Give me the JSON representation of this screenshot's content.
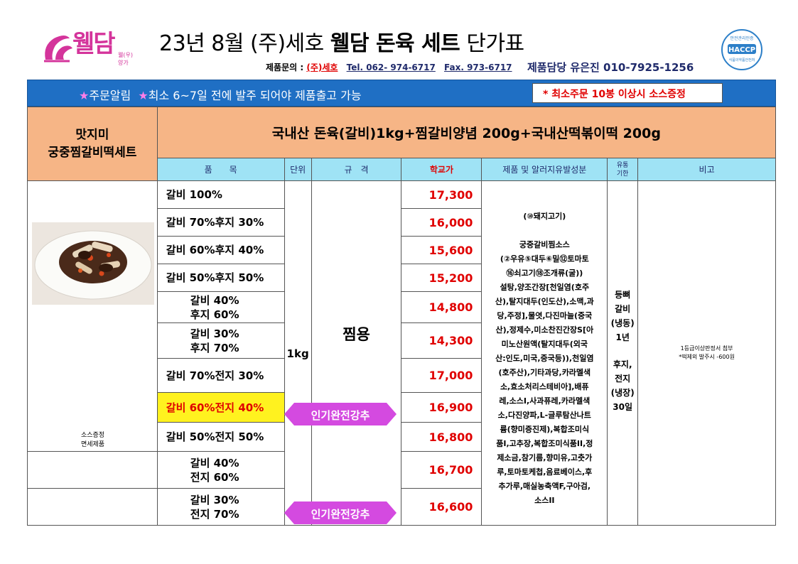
{
  "header": {
    "logo_text": "웰담",
    "logo_sub": "웰(우)양가",
    "title_prefix": "23년 8월 (주)세호",
    "title_brand": "웰담 돈육 세트",
    "title_suffix": "단가표",
    "contact_label": "제품문의 :",
    "contact_company": "(주)세호",
    "contact_tel": "Tel. 062- 974-6717",
    "contact_fax": "Fax. 973-6717",
    "manager": "제품담당 유은진 010-7925-1256",
    "haccp_top": "안전관리인증",
    "haccp_main": "HACCP",
    "haccp_bottom": "식품의약품안전처"
  },
  "notice": {
    "star": "★",
    "text1": "주문알림",
    "text2": "최소 6~7일 전에 발주 되어야 제품출고 가능",
    "box": "* 최소주문 10봉 이상시 소스증정"
  },
  "product": {
    "name_line1": "맛지미",
    "name_line2": "궁중찜갈비떡세트",
    "composition": "국내산 돈육(갈비)1kg+찜갈비양념 200g+국내산떡볶이떡 200g",
    "sauce_note_line1": "소스증정",
    "sauce_note_line2": "면세제품"
  },
  "columns": {
    "item": "품　　목",
    "unit": "단위",
    "spec": "규　격",
    "price": "학교가",
    "ingredients": "제품 및 알러지유발성분",
    "shelf_line1": "유통",
    "shelf_line2": "기한",
    "remarks": "비고"
  },
  "rows": [
    {
      "item": "갈비 100%",
      "price": "17,300"
    },
    {
      "item": "갈비 70%후지 30%",
      "price": "16,000"
    },
    {
      "item": "갈비 60%후지 40%",
      "price": "15,600"
    },
    {
      "item": "갈비 50%후지 50%",
      "price": "15,200"
    },
    {
      "item_line1": "갈비 40%",
      "item_line2": "후지 60%",
      "price": "14,800"
    },
    {
      "item_line1": "갈비 30%",
      "item_line2": "후지 70%",
      "price": "14,300"
    },
    {
      "item": "갈비 70%전지 30%",
      "price": "17,000"
    },
    {
      "item": "갈비 60%전지 40%",
      "price": "16,900",
      "highlight": true
    },
    {
      "item": "갈비 50%전지 50%",
      "price": "16,800"
    },
    {
      "item_line1": "갈비 40%",
      "item_line2": "전지 60%",
      "price": "16,700"
    },
    {
      "item_line1": "갈비 30%",
      "item_line2": "전지 70%",
      "price": "16,600"
    }
  ],
  "unit": "1kg",
  "spec": "찜용",
  "ingredients": [
    "(⑩돼지고기)",
    "",
    "궁중갈비찜소스",
    "(②우유⑤대두⑥밀⑫토마토",
    "⑯쇠고기⑱조개류(굴))",
    "설탕,양조간장[천일염(호주",
    "산),탈지대두(인도산),소맥,과",
    "당,주정],물엿,다진마늘(중국",
    "산),정제수,미소찬진간장S[아",
    "미노산원액(탈지대두(외국",
    "산:인도,미국,중국등)),천일염",
    "(호주산),기타과당,카라멜색",
    "소,효소처리스테비아],배퓨",
    "레,소스I,사과퓨레,카라멜색",
    "소,다진양파,L-글루탐산나트",
    "륨(향미증진제),복합조미식",
    "품I,고추장,복합조미식품II,정",
    "제소금,참기름,향미유,고춧가",
    "루,토마토케첩,음료베이스,후",
    "추가루,매실농축액F,구아검,",
    "소스II"
  ],
  "shelf_life": [
    "등뼈",
    "갈비",
    "(냉동)",
    "1년",
    "",
    "후지,",
    "전지",
    "(냉장)",
    "30일"
  ],
  "remarks": {
    "line1": "1등급이상판정서 첨부",
    "line2": "*떡제외 발주시 -600원"
  },
  "badges": {
    "hot_sale": "인기완전강추"
  },
  "colors": {
    "brand_pink": "#d4349b",
    "notice_blue": "#1f6fc4",
    "header_cyan": "#9fe3f5",
    "peach": "#f6b586",
    "price_red": "#e00000",
    "highlight_yellow": "#fff21f",
    "ribbon_magenta": "#d44ae0"
  }
}
